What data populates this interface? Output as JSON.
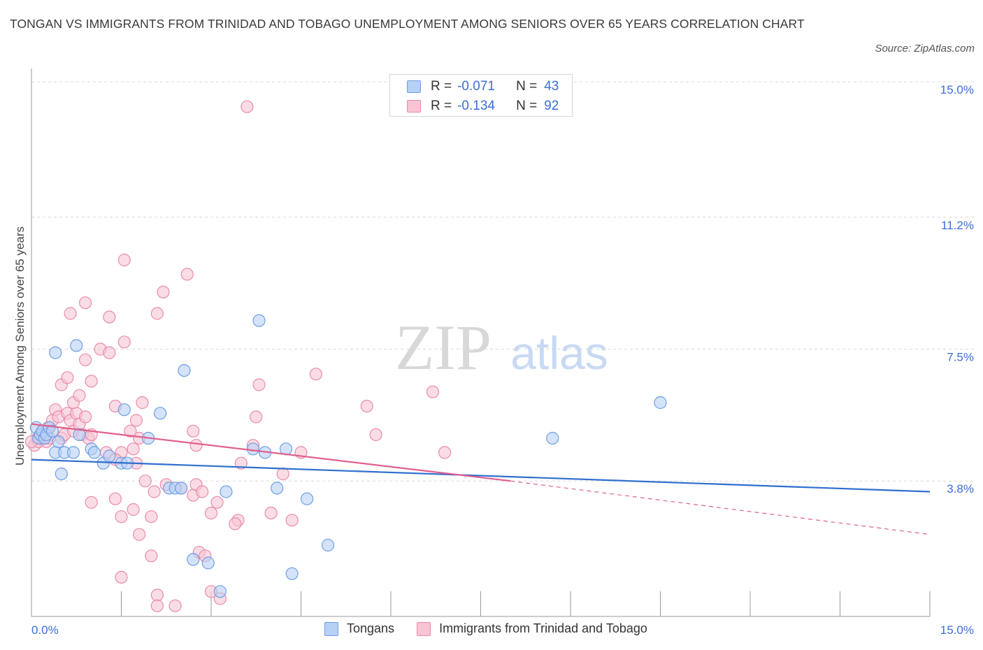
{
  "title": "TONGAN VS IMMIGRANTS FROM TRINIDAD AND TOBAGO UNEMPLOYMENT AMONG SENIORS OVER 65 YEARS CORRELATION CHART",
  "source": "Source: ZipAtlas.com",
  "watermark": {
    "zip": "ZIP",
    "atlas": "atlas"
  },
  "legend_top": {
    "rows": [
      {
        "r_label": "R =",
        "r_value": "-0.071",
        "n_label": "N =",
        "n_value": "43"
      },
      {
        "r_label": "R =",
        "r_value": "-0.134",
        "n_label": "N =",
        "n_value": "92"
      }
    ]
  },
  "legend_bottom": {
    "series1": "Tongans",
    "series2": "Immigrants from Trinidad and Tobago"
  },
  "colors": {
    "blue_fill": "#b7d0f5",
    "blue_stroke": "#6f9ee3",
    "blue_line": "#2f6fcf",
    "pink_fill": "#f7c4d4",
    "pink_stroke": "#e98cab",
    "pink_line": "#e0608f",
    "axis_text": "#3b6fd6",
    "grid": "#d9d9d9"
  },
  "chart_data": {
    "type": "scatter",
    "title": "TONGAN VS IMMIGRANTS FROM TRINIDAD AND TOBAGO UNEMPLOYMENT AMONG SENIORS OVER 65 YEARS CORRELATION CHART",
    "xlabel": "",
    "ylabel": "Unemployment Among Seniors over 65 years",
    "xlim": [
      0,
      15
    ],
    "ylim": [
      0,
      15
    ],
    "x_tick_labels": [
      "0.0%",
      "15.0%"
    ],
    "y_ticks": [
      3.8,
      7.5,
      11.2,
      15.0
    ],
    "y_tick_labels": [
      "3.8%",
      "7.5%",
      "11.2%",
      "15.0%"
    ],
    "grid": true,
    "series": [
      {
        "name": "Tongans",
        "r": -0.071,
        "n": 43,
        "trend": {
          "x0": 0,
          "y0": 4.4,
          "x1": 15,
          "y1": 3.5
        },
        "points": [
          [
            0.08,
            5.3
          ],
          [
            0.12,
            5.0
          ],
          [
            0.15,
            5.1
          ],
          [
            0.18,
            5.2
          ],
          [
            0.22,
            5.0
          ],
          [
            0.25,
            5.1
          ],
          [
            0.3,
            5.3
          ],
          [
            0.35,
            5.2
          ],
          [
            0.4,
            4.6
          ],
          [
            0.45,
            4.9
          ],
          [
            0.5,
            4.0
          ],
          [
            0.55,
            4.6
          ],
          [
            0.7,
            4.6
          ],
          [
            0.8,
            5.1
          ],
          [
            1.0,
            4.7
          ],
          [
            1.05,
            4.6
          ],
          [
            1.2,
            4.3
          ],
          [
            1.3,
            4.5
          ],
          [
            1.5,
            4.3
          ],
          [
            1.6,
            4.3
          ],
          [
            0.4,
            7.4
          ],
          [
            0.75,
            7.6
          ],
          [
            1.55,
            5.8
          ],
          [
            1.95,
            5.0
          ],
          [
            2.15,
            5.7
          ],
          [
            2.3,
            3.6
          ],
          [
            2.4,
            3.6
          ],
          [
            2.5,
            3.6
          ],
          [
            2.55,
            6.9
          ],
          [
            2.7,
            1.6
          ],
          [
            2.95,
            1.5
          ],
          [
            3.15,
            0.7
          ],
          [
            3.25,
            3.5
          ],
          [
            3.7,
            4.7
          ],
          [
            3.8,
            8.3
          ],
          [
            3.9,
            4.6
          ],
          [
            4.1,
            3.6
          ],
          [
            4.25,
            4.7
          ],
          [
            4.6,
            3.3
          ],
          [
            4.35,
            1.2
          ],
          [
            4.95,
            2.0
          ],
          [
            8.7,
            5.0
          ],
          [
            10.5,
            6.0
          ]
        ]
      },
      {
        "name": "Immigrants from Trinidad and Tobago",
        "r": -0.134,
        "n": 92,
        "trend": {
          "x0": 0,
          "y0": 5.4,
          "x1": 8.0,
          "y1": 3.8
        },
        "trend_dashed": {
          "x0": 8.0,
          "y0": 3.8,
          "x1": 15,
          "y1": 2.3
        },
        "points": [
          [
            0.05,
            4.8
          ],
          [
            0.1,
            5.0
          ],
          [
            0.12,
            4.9
          ],
          [
            0.15,
            5.1
          ],
          [
            0.18,
            5.0
          ],
          [
            0.2,
            5.2
          ],
          [
            0.25,
            4.9
          ],
          [
            0.28,
            5.3
          ],
          [
            0.3,
            5.0
          ],
          [
            0.35,
            5.5
          ],
          [
            0.4,
            5.8
          ],
          [
            0.45,
            5.6
          ],
          [
            0.5,
            5.0
          ],
          [
            0.55,
            5.1
          ],
          [
            0.6,
            5.7
          ],
          [
            0.65,
            5.5
          ],
          [
            0.7,
            5.2
          ],
          [
            0.75,
            5.7
          ],
          [
            0.8,
            5.4
          ],
          [
            0.85,
            5.1
          ],
          [
            0.9,
            5.6
          ],
          [
            0.95,
            5.0
          ],
          [
            1.0,
            5.1
          ],
          [
            0.5,
            6.5
          ],
          [
            0.6,
            6.7
          ],
          [
            0.7,
            6.0
          ],
          [
            0.8,
            6.2
          ],
          [
            0.9,
            7.2
          ],
          [
            1.0,
            6.6
          ],
          [
            0.65,
            8.5
          ],
          [
            0.9,
            8.8
          ],
          [
            1.3,
            8.4
          ],
          [
            1.15,
            7.5
          ],
          [
            1.3,
            7.4
          ],
          [
            1.55,
            7.7
          ],
          [
            1.4,
            5.9
          ],
          [
            1.75,
            5.5
          ],
          [
            1.85,
            6.0
          ],
          [
            1.5,
            4.6
          ],
          [
            1.7,
            4.7
          ],
          [
            1.8,
            5.0
          ],
          [
            1.65,
            5.2
          ],
          [
            1.55,
            10.0
          ],
          [
            2.1,
            8.5
          ],
          [
            2.2,
            9.1
          ],
          [
            2.6,
            9.6
          ],
          [
            1.25,
            4.6
          ],
          [
            1.4,
            4.4
          ],
          [
            1.75,
            4.3
          ],
          [
            1.9,
            3.8
          ],
          [
            2.05,
            3.5
          ],
          [
            2.25,
            3.7
          ],
          [
            2.5,
            3.6
          ],
          [
            2.7,
            3.4
          ],
          [
            2.75,
            3.7
          ],
          [
            2.85,
            3.5
          ],
          [
            3.1,
            3.2
          ],
          [
            3.45,
            2.7
          ],
          [
            3.4,
            2.6
          ],
          [
            3.5,
            4.3
          ],
          [
            3.7,
            4.8
          ],
          [
            3.75,
            5.6
          ],
          [
            3.8,
            6.5
          ],
          [
            2.7,
            5.2
          ],
          [
            2.75,
            4.8
          ],
          [
            4.75,
            6.8
          ],
          [
            5.6,
            5.9
          ],
          [
            5.75,
            5.1
          ],
          [
            6.7,
            6.3
          ],
          [
            6.9,
            4.6
          ],
          [
            4.5,
            4.6
          ],
          [
            4.2,
            4.0
          ],
          [
            4.0,
            2.9
          ],
          [
            4.35,
            2.7
          ],
          [
            1.0,
            3.2
          ],
          [
            1.4,
            3.3
          ],
          [
            1.5,
            2.8
          ],
          [
            1.7,
            3.0
          ],
          [
            1.8,
            2.3
          ],
          [
            2.0,
            2.8
          ],
          [
            2.0,
            1.7
          ],
          [
            1.5,
            1.1
          ],
          [
            2.1,
            0.6
          ],
          [
            2.1,
            0.3
          ],
          [
            2.4,
            0.3
          ],
          [
            2.8,
            1.8
          ],
          [
            2.9,
            1.7
          ],
          [
            3.0,
            0.7
          ],
          [
            3.15,
            0.5
          ],
          [
            3.0,
            2.9
          ],
          [
            3.6,
            14.3
          ],
          [
            0.0,
            4.9
          ]
        ]
      }
    ]
  }
}
